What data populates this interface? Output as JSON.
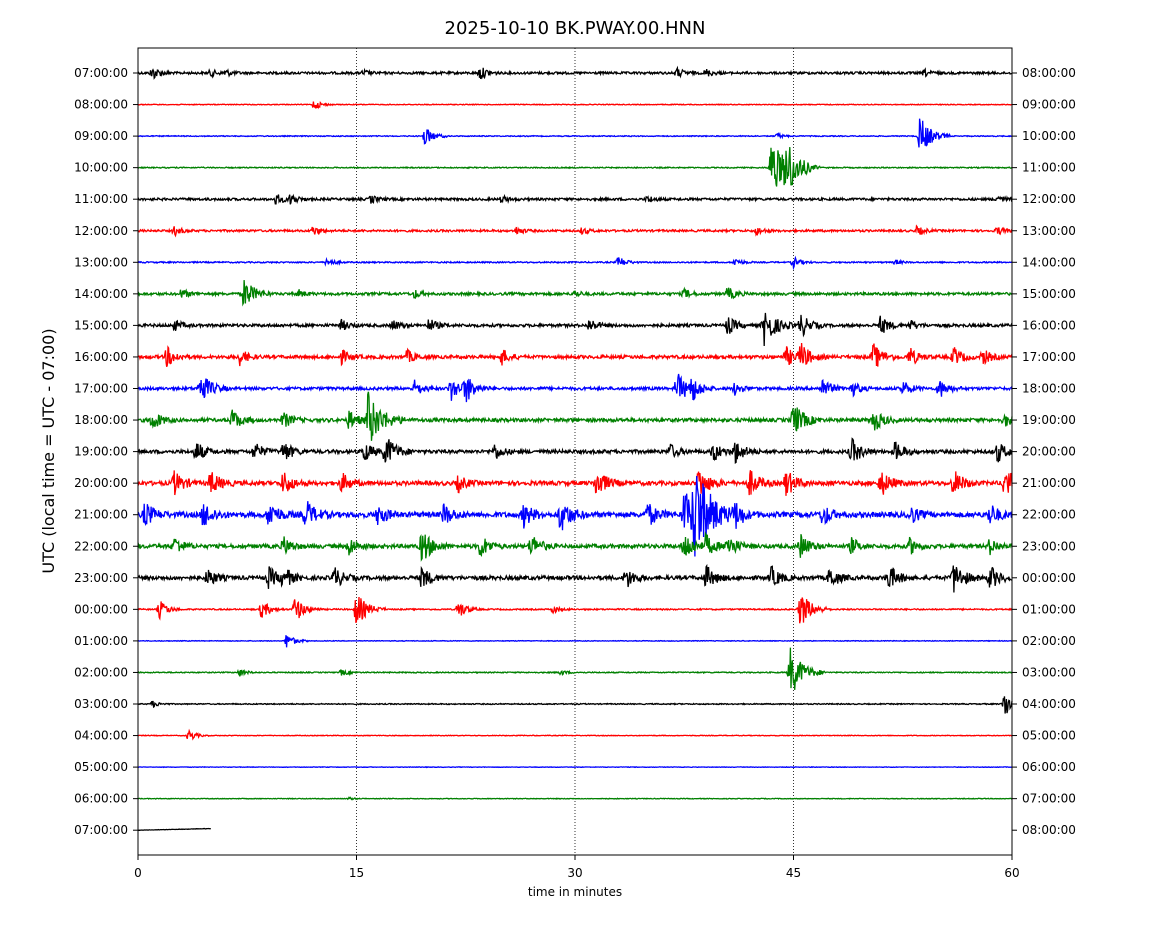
{
  "chart_data": {
    "type": "line",
    "title": "2025-10-10 BK.PWAY.00.HNN",
    "xlabel": "time in minutes",
    "ylabel": "UTC (local time = UTC - 07:00)",
    "xlim": [
      0,
      60
    ],
    "xticks": [
      0,
      15,
      30,
      45,
      60
    ],
    "vertical_gridlines_at": [
      15,
      30,
      45
    ],
    "grid": "vertical dotted",
    "trace_colors": [
      "#000000",
      "#ff0000",
      "#0000ff",
      "#008000"
    ],
    "left_labels": [
      "07:00:00",
      "08:00:00",
      "09:00:00",
      "10:00:00",
      "11:00:00",
      "12:00:00",
      "13:00:00",
      "14:00:00",
      "15:00:00",
      "16:00:00",
      "17:00:00",
      "18:00:00",
      "19:00:00",
      "20:00:00",
      "21:00:00",
      "22:00:00",
      "23:00:00",
      "00:00:00",
      "01:00:00",
      "02:00:00",
      "03:00:00",
      "04:00:00",
      "05:00:00",
      "06:00:00",
      "07:00:00"
    ],
    "right_labels": [
      "08:00:00",
      "09:00:00",
      "10:00:00",
      "11:00:00",
      "12:00:00",
      "13:00:00",
      "14:00:00",
      "15:00:00",
      "16:00:00",
      "17:00:00",
      "18:00:00",
      "19:00:00",
      "20:00:00",
      "21:00:00",
      "22:00:00",
      "23:00:00",
      "00:00:00",
      "01:00:00",
      "02:00:00",
      "03:00:00",
      "04:00:00",
      "05:00:00",
      "06:00:00",
      "07:00:00",
      "08:00:00"
    ],
    "traces": [
      {
        "noise": 0.18,
        "end_minute": 60,
        "events": [
          [
            1,
            1.0
          ],
          [
            5,
            0.5
          ],
          [
            6,
            0.5
          ],
          [
            15.5,
            0.4
          ],
          [
            23.5,
            1.0
          ],
          [
            37,
            0.7
          ],
          [
            39,
            0.6
          ],
          [
            54,
            0.5
          ]
        ]
      },
      {
        "noise": 0.06,
        "end_minute": 60,
        "events": [
          [
            12.1,
            0.8
          ]
        ]
      },
      {
        "noise": 0.07,
        "end_minute": 60,
        "events": [
          [
            19.7,
            1.5
          ],
          [
            43.9,
            0.4
          ],
          [
            53.7,
            3.0
          ]
        ]
      },
      {
        "noise": 0.08,
        "end_minute": 60,
        "events": [
          [
            43.5,
            4.5
          ],
          [
            44.5,
            3.5
          ]
        ]
      },
      {
        "noise": 0.18,
        "end_minute": 60,
        "events": [
          [
            9.5,
            0.8
          ],
          [
            10.5,
            0.8
          ],
          [
            16,
            0.6
          ],
          [
            25,
            0.5
          ],
          [
            35,
            0.5
          ],
          [
            59,
            0.6
          ]
        ]
      },
      {
        "noise": 0.16,
        "end_minute": 60,
        "events": [
          [
            2.5,
            0.7
          ],
          [
            12,
            0.7
          ],
          [
            26,
            0.6
          ],
          [
            30.5,
            0.5
          ],
          [
            42.5,
            0.6
          ],
          [
            53.5,
            0.7
          ],
          [
            59,
            0.6
          ]
        ]
      },
      {
        "noise": 0.1,
        "end_minute": 60,
        "events": [
          [
            13,
            0.7
          ],
          [
            33,
            0.9
          ],
          [
            41,
            0.6
          ],
          [
            45,
            0.8
          ],
          [
            52,
            0.4
          ]
        ]
      },
      {
        "noise": 0.2,
        "end_minute": 60,
        "events": [
          [
            3,
            0.7
          ],
          [
            7.3,
            2.3
          ],
          [
            11,
            0.6
          ],
          [
            19,
            0.6
          ],
          [
            30,
            0.5
          ],
          [
            37.5,
            0.7
          ],
          [
            40.5,
            1.0
          ]
        ]
      },
      {
        "noise": 0.22,
        "end_minute": 60,
        "events": [
          [
            2.5,
            0.8
          ],
          [
            14,
            0.8
          ],
          [
            17.5,
            0.8
          ],
          [
            20,
            1.0
          ],
          [
            31,
            1.0
          ],
          [
            40.5,
            1.4
          ],
          [
            43,
            3.0
          ],
          [
            45.5,
            1.8
          ],
          [
            51,
            1.4
          ],
          [
            53,
            0.8
          ]
        ]
      },
      {
        "noise": 0.25,
        "end_minute": 60,
        "events": [
          [
            2,
            1.5
          ],
          [
            7,
            1.2
          ],
          [
            14,
            1.0
          ],
          [
            18.5,
            1.0
          ],
          [
            25,
            1.2
          ],
          [
            44.5,
            1.5
          ],
          [
            45.5,
            2.0
          ],
          [
            50.5,
            2.0
          ],
          [
            53,
            1.4
          ],
          [
            56,
            1.5
          ],
          [
            58,
            1.2
          ]
        ]
      },
      {
        "noise": 0.22,
        "end_minute": 60,
        "events": [
          [
            4.3,
            2.5
          ],
          [
            19,
            1.2
          ],
          [
            21.5,
            1.8
          ],
          [
            22.5,
            2.0
          ],
          [
            37,
            2.5
          ],
          [
            38,
            1.6
          ],
          [
            41,
            1.0
          ],
          [
            47,
            1.5
          ],
          [
            49,
            1.2
          ],
          [
            52.5,
            1.2
          ],
          [
            55,
            1.5
          ]
        ]
      },
      {
        "noise": 0.27,
        "end_minute": 60,
        "events": [
          [
            1,
            1.5
          ],
          [
            6.5,
            1.6
          ],
          [
            10,
            1.2
          ],
          [
            14.5,
            1.4
          ],
          [
            15.8,
            4.2
          ],
          [
            45,
            2.6
          ],
          [
            50.5,
            1.8
          ],
          [
            59.5,
            1.0
          ]
        ]
      },
      {
        "noise": 0.27,
        "end_minute": 60,
        "events": [
          [
            4,
            1.6
          ],
          [
            8,
            1.4
          ],
          [
            10,
            1.6
          ],
          [
            15.5,
            1.6
          ],
          [
            17,
            2.5
          ],
          [
            24.5,
            1.2
          ],
          [
            36.5,
            1.2
          ],
          [
            39.5,
            1.5
          ],
          [
            41,
            1.8
          ],
          [
            49,
            2.0
          ],
          [
            52,
            1.5
          ],
          [
            59,
            1.6
          ]
        ]
      },
      {
        "noise": 0.32,
        "end_minute": 60,
        "events": [
          [
            2.5,
            1.8
          ],
          [
            5,
            1.8
          ],
          [
            10,
            1.8
          ],
          [
            14,
            1.5
          ],
          [
            22,
            1.2
          ],
          [
            31.5,
            2.2
          ],
          [
            38.5,
            2.4
          ],
          [
            42,
            2.0
          ],
          [
            44.5,
            2.0
          ],
          [
            51,
            2.0
          ],
          [
            56,
            2.0
          ],
          [
            59.5,
            2.4
          ]
        ]
      },
      {
        "noise": 0.4,
        "end_minute": 60,
        "events": [
          [
            0.5,
            1.8
          ],
          [
            4.5,
            2.0
          ],
          [
            9,
            2.0
          ],
          [
            11.5,
            2.2
          ],
          [
            16.5,
            1.6
          ],
          [
            21,
            1.6
          ],
          [
            26.5,
            1.8
          ],
          [
            29,
            2.5
          ],
          [
            35,
            1.8
          ],
          [
            37.5,
            3.6
          ],
          [
            38.2,
            6.5
          ],
          [
            41,
            1.6
          ],
          [
            47,
            1.6
          ],
          [
            53,
            1.4
          ],
          [
            58.5,
            1.6
          ]
        ]
      },
      {
        "noise": 0.3,
        "end_minute": 60,
        "events": [
          [
            2.5,
            1.4
          ],
          [
            10,
            1.4
          ],
          [
            14.5,
            1.4
          ],
          [
            19.5,
            2.5
          ],
          [
            23.5,
            1.8
          ],
          [
            27,
            1.8
          ],
          [
            37.5,
            2.2
          ],
          [
            39,
            1.6
          ],
          [
            40.5,
            1.8
          ],
          [
            45.5,
            1.8
          ],
          [
            49,
            1.2
          ],
          [
            53,
            1.2
          ],
          [
            58.5,
            1.2
          ]
        ]
      },
      {
        "noise": 0.3,
        "end_minute": 60,
        "events": [
          [
            4.8,
            1.4
          ],
          [
            9,
            1.6
          ],
          [
            10,
            1.6
          ],
          [
            13.5,
            1.6
          ],
          [
            19.5,
            1.6
          ],
          [
            33.5,
            1.6
          ],
          [
            39,
            1.8
          ],
          [
            43.5,
            1.6
          ],
          [
            47.5,
            1.6
          ],
          [
            51.5,
            2.0
          ],
          [
            56,
            2.4
          ],
          [
            58.5,
            1.8
          ]
        ]
      },
      {
        "noise": 0.1,
        "end_minute": 60,
        "events": [
          [
            1.5,
            1.4
          ],
          [
            8.5,
            1.4
          ],
          [
            10.8,
            2.0
          ],
          [
            15,
            2.6
          ],
          [
            22,
            1.4
          ],
          [
            28.5,
            0.6
          ],
          [
            45.5,
            2.8
          ]
        ]
      },
      {
        "noise": 0.05,
        "end_minute": 60,
        "events": [
          [
            10.2,
            1.2
          ]
        ]
      },
      {
        "noise": 0.08,
        "end_minute": 60,
        "events": [
          [
            7,
            0.6
          ],
          [
            14,
            0.5
          ],
          [
            29,
            0.4
          ],
          [
            44.8,
            3.8
          ]
        ]
      },
      {
        "noise": 0.08,
        "end_minute": 60,
        "events": [
          [
            1,
            0.5
          ],
          [
            59.5,
            2.2
          ]
        ]
      },
      {
        "noise": 0.05,
        "end_minute": 60,
        "events": [
          [
            3.5,
            0.9
          ]
        ]
      },
      {
        "noise": 0.04,
        "end_minute": 60,
        "events": []
      },
      {
        "noise": 0.05,
        "end_minute": 60,
        "events": [
          [
            14.5,
            0.2
          ]
        ]
      },
      {
        "noise": 0.03,
        "end_minute": 5,
        "drift": 0.25,
        "events": []
      }
    ]
  }
}
